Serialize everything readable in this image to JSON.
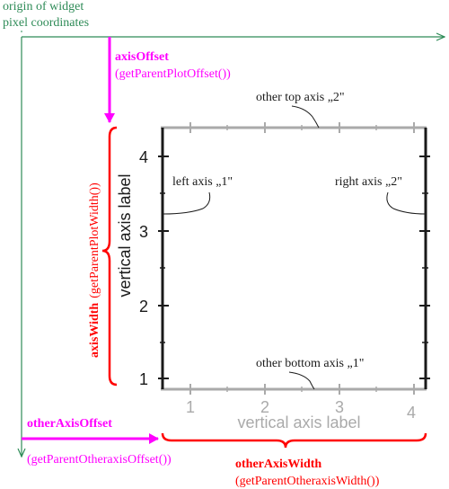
{
  "origin_caption": {
    "line1": "origin of widget",
    "line2": "pixel coordinates"
  },
  "axis_offset": {
    "label": "axisOffset",
    "function": "(getParentPlotOffset())"
  },
  "axis_width": {
    "label": "axisWidth",
    "function": "(getParentPlotWidth())"
  },
  "other_axis_offset": {
    "label": "otherAxisOffset",
    "function": "(getParentOtheraxisOffset())"
  },
  "other_axis_width": {
    "label": "otherAxisWidth",
    "function": "(getParentOtheraxisWidth())"
  },
  "axis_callouts": {
    "top": "other top axis „2\"",
    "left": "left axis „1\"",
    "right": "right axis „2\"",
    "bottom": "other bottom axis „1\""
  },
  "vertical_axis": {
    "label": "vertical axis label",
    "ticks": [
      "1",
      "2",
      "3",
      "4"
    ]
  },
  "horizontal_axis": {
    "label": "vertical axis label",
    "ticks": [
      "1",
      "2",
      "3",
      "4"
    ]
  },
  "colors": {
    "green": "#2e8b57",
    "magenta": "#ff00ff",
    "red": "#ff0000",
    "axis_dark": "#1a1a1a",
    "axis_gray": "#aaaaaa"
  }
}
